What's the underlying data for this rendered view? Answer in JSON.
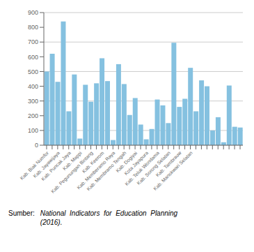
{
  "chart_data": {
    "type": "bar",
    "categories": [
      "Kab. Biak Numfor",
      null,
      "Kab. Jayawijaya",
      null,
      "Kab. Puncak Jaya",
      null,
      "Kab. Mappi",
      null,
      "Kab. Pegunungan Bintang",
      null,
      "Kab. Keerom",
      null,
      "Kab. Memberamo Raya",
      null,
      "Kab. Membramo Tengah",
      null,
      "Kab. Dogiyai",
      null,
      "Kota Jayapura",
      null,
      "Kab. Teluk Wondama",
      null,
      "Kab. Sorong Selatan",
      null,
      "Kab. Tambrauw",
      null,
      "Kab. Manokwari Selatan",
      null,
      null,
      null,
      null,
      null,
      null,
      null,
      null,
      null
    ],
    "values": [
      500,
      620,
      430,
      840,
      230,
      480,
      45,
      410,
      295,
      420,
      590,
      435,
      35,
      550,
      415,
      205,
      320,
      140,
      40,
      110,
      310,
      270,
      150,
      695,
      260,
      315,
      525,
      230,
      440,
      400,
      100,
      190,
      20,
      405,
      125,
      120
    ],
    "color": "#85C1E0",
    "ylim": [
      0,
      900
    ],
    "yticks": [
      0,
      100,
      200,
      300,
      400,
      500,
      600,
      700,
      800,
      900
    ],
    "grid": true,
    "annotations": [
      "Sumber:",
      "National  Indicators  for  Education  Planning\n(2016)."
    ]
  }
}
